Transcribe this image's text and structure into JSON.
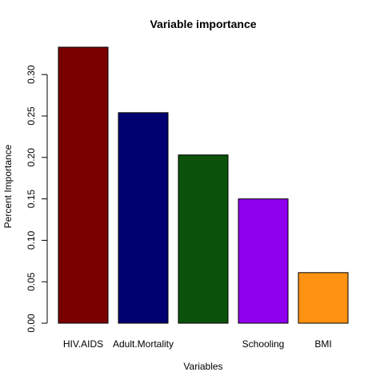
{
  "chart_data": {
    "type": "bar",
    "title": "Variable importance",
    "xlabel": "Variables",
    "ylabel": "Percent Importance",
    "categories": [
      "HIV.AIDS",
      "Adult.Mortality",
      "",
      "Schooling",
      "BMI"
    ],
    "values": [
      0.333,
      0.254,
      0.203,
      0.15,
      0.061
    ],
    "colors": [
      "#7a0000",
      "#000070",
      "#0c520a",
      "#8f00ee",
      "#ff9210"
    ],
    "ylim": [
      0,
      0.35
    ],
    "yticks": [
      0.0,
      0.05,
      0.1,
      0.15,
      0.2,
      0.25,
      0.3
    ],
    "ytick_labels": [
      "0.00",
      "0.05",
      "0.10",
      "0.15",
      "0.20",
      "0.25",
      "0.30"
    ],
    "grid": false,
    "legend": "none"
  }
}
